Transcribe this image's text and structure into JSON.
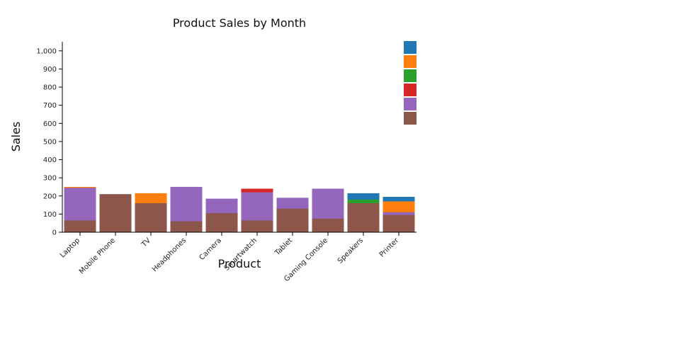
{
  "chart_data": {
    "type": "bar",
    "barmode": "overlay",
    "title": "Product Sales by Month",
    "xlabel": "Product",
    "ylabel": "Sales",
    "ylim": [
      0,
      1050
    ],
    "yticks": [
      0,
      100,
      200,
      300,
      400,
      500,
      600,
      700,
      800,
      900,
      1000
    ],
    "ytick_labels": [
      "0",
      "100",
      "200",
      "300",
      "400",
      "500",
      "600",
      "700",
      "800",
      "900",
      "1,000"
    ],
    "categories": [
      "Laptop",
      "Mobile Phone",
      "TV",
      "Headphones",
      "Camera",
      "Smartwatch",
      "Tablet",
      "Gaming Console",
      "Speakers",
      "Printer"
    ],
    "series": [
      {
        "color": "#1f77b4",
        "values": [
          245,
          205,
          160,
          60,
          105,
          65,
          130,
          75,
          215,
          195
        ]
      },
      {
        "color": "#ff7f0e",
        "values": [
          250,
          205,
          215,
          60,
          105,
          65,
          130,
          75,
          160,
          170
        ]
      },
      {
        "color": "#2ca02c",
        "values": [
          60,
          205,
          160,
          60,
          105,
          65,
          130,
          75,
          180,
          110
        ]
      },
      {
        "color": "#d62728",
        "values": [
          60,
          205,
          160,
          60,
          105,
          240,
          130,
          75,
          160,
          110
        ]
      },
      {
        "color": "#9467bd",
        "values": [
          245,
          205,
          160,
          250,
          185,
          220,
          190,
          240,
          160,
          110
        ]
      },
      {
        "color": "#8c564b",
        "values": [
          65,
          210,
          160,
          60,
          105,
          65,
          130,
          75,
          160,
          95
        ]
      }
    ],
    "legend": {
      "placement": "top-right",
      "entries": 6
    },
    "grid": false
  }
}
